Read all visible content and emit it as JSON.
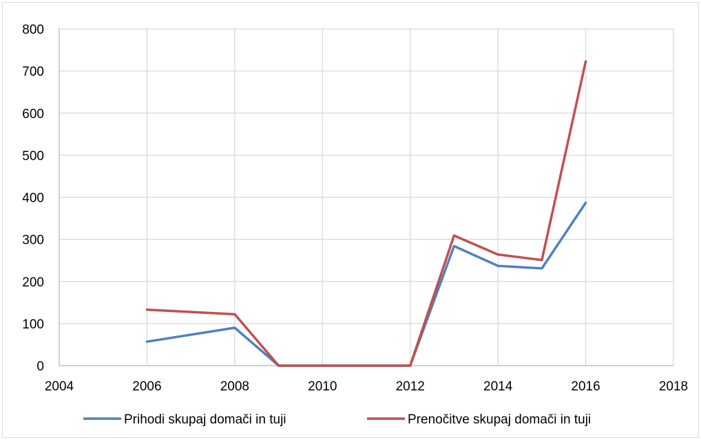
{
  "chart_data": {
    "type": "line",
    "title": "",
    "xlabel": "",
    "ylabel": "",
    "xlim": [
      2004,
      2018
    ],
    "ylim": [
      0,
      800
    ],
    "x_ticks": [
      2004,
      2006,
      2008,
      2010,
      2012,
      2014,
      2016,
      2018
    ],
    "y_ticks": [
      0,
      100,
      200,
      300,
      400,
      500,
      600,
      700,
      800
    ],
    "x_tick_labels": [
      "2004",
      "2006",
      "2008",
      "2010",
      "2012",
      "2014",
      "2016",
      "2018"
    ],
    "y_tick_labels": [
      "0",
      "100",
      "200",
      "300",
      "400",
      "500",
      "600",
      "700",
      "800"
    ],
    "grid": true,
    "legend_position": "bottom",
    "series": [
      {
        "name": "Prihodi skupaj domači in tuji",
        "color": "#4f81bd",
        "x": [
          2006,
          2008,
          2009,
          2010,
          2011,
          2012,
          2013,
          2014,
          2015,
          2016
        ],
        "y": [
          57,
          90,
          0,
          0,
          0,
          0,
          284,
          237,
          231,
          387
        ]
      },
      {
        "name": "Prenočitve skupaj domači in tuji",
        "color": "#c0504d",
        "x": [
          2006,
          2008,
          2009,
          2010,
          2011,
          2012,
          2013,
          2014,
          2015,
          2016
        ],
        "y": [
          133,
          122,
          0,
          0,
          0,
          0,
          309,
          264,
          251,
          723
        ]
      }
    ]
  }
}
